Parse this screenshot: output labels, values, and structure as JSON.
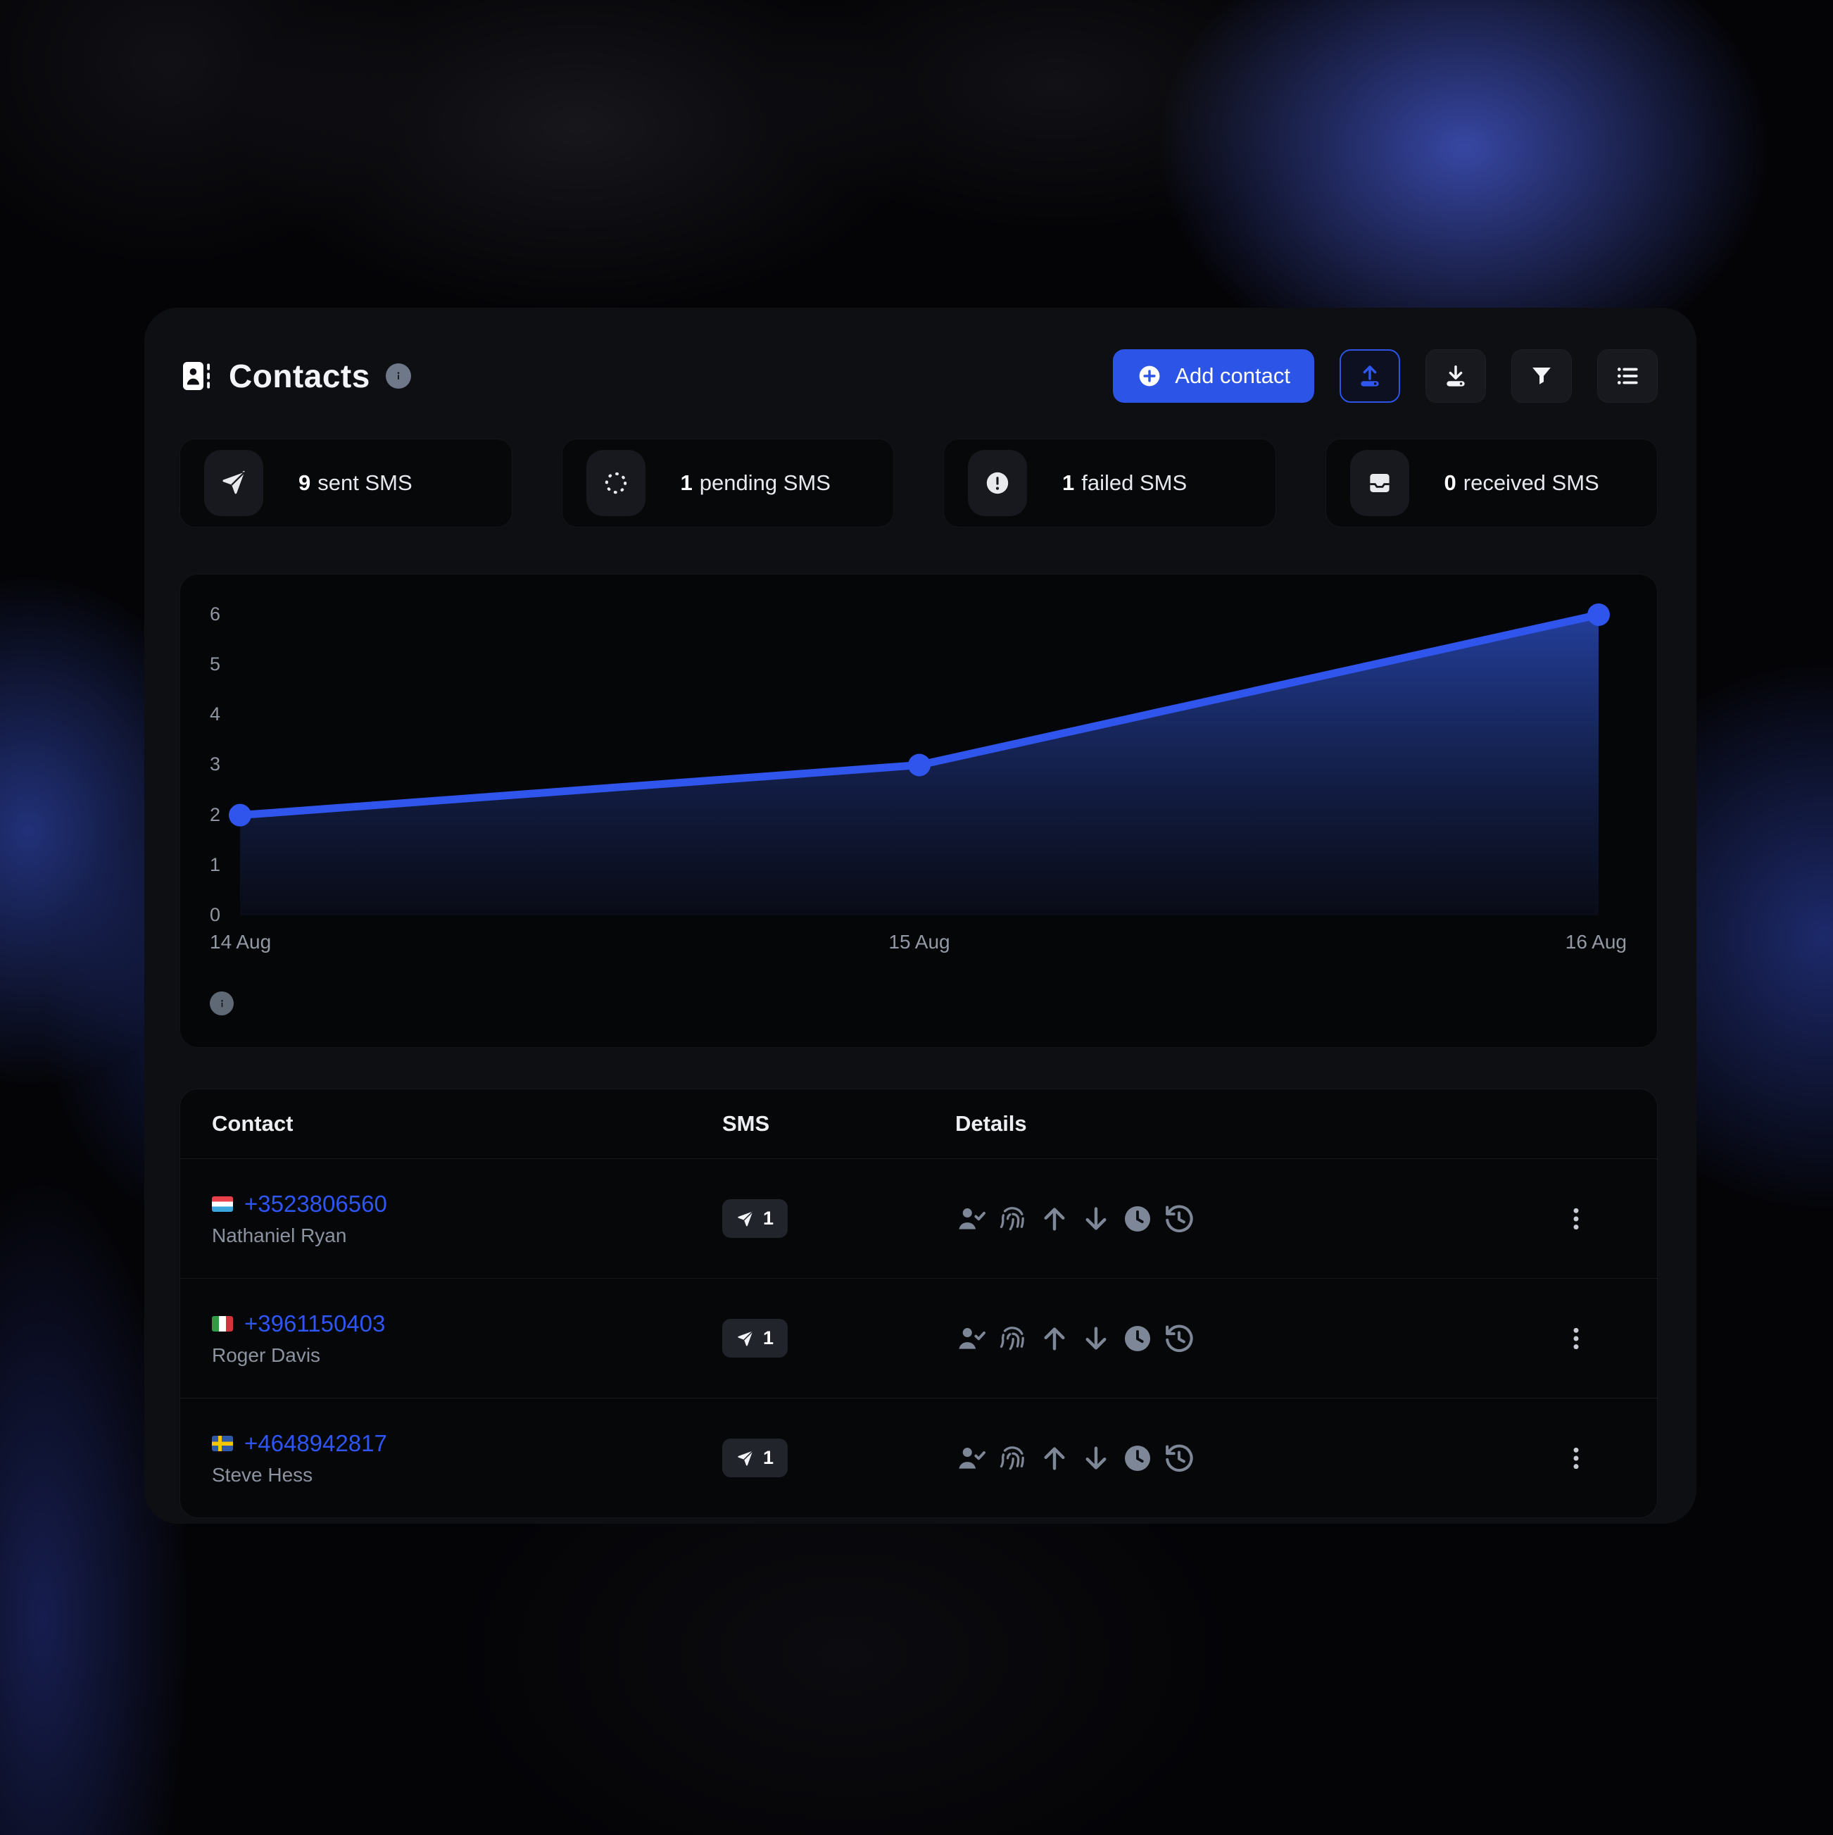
{
  "header": {
    "title": "Contacts",
    "add_contact_label": "Add contact"
  },
  "stats": [
    {
      "icon": "send-icon",
      "value": "9",
      "label": "sent SMS"
    },
    {
      "icon": "loader-icon",
      "value": "1",
      "label": "pending SMS"
    },
    {
      "icon": "alert-icon",
      "value": "1",
      "label": "failed SMS"
    },
    {
      "icon": "inbox-icon",
      "value": "0",
      "label": "received SMS"
    }
  ],
  "chart_data": {
    "type": "area",
    "title": "",
    "x": [
      "14 Aug",
      "15 Aug",
      "16 Aug"
    ],
    "series": [
      {
        "name": "sent SMS",
        "values": [
          2,
          3,
          6
        ]
      }
    ],
    "yticks": [
      6,
      5,
      4,
      3,
      2,
      1,
      0
    ],
    "ylim": [
      0,
      6
    ],
    "grid": false,
    "legend": "none",
    "line_color": "#2f55ec",
    "fill_top_color": "#2542a4",
    "fill_bottom_color": "#0c1024"
  },
  "table": {
    "columns": [
      "Contact",
      "SMS",
      "Details"
    ],
    "rows": [
      {
        "phone": "+3523806560",
        "name": "Nathaniel Ryan",
        "flag_class": "flag flag-lu",
        "flag_country": "Luxembourg",
        "sms": "1"
      },
      {
        "phone": "+3961150403",
        "name": "Roger Davis",
        "flag_class": "flag flag-it",
        "flag_country": "Italy",
        "sms": "1"
      },
      {
        "phone": "+4648942817",
        "name": "Steve Hess",
        "flag_class": "flag flag-se",
        "flag_country": "Sweden",
        "sms": "1"
      }
    ]
  },
  "colors": {
    "accent": "#2c54e6",
    "link": "#2e55f5",
    "panel": "#0e0f13"
  }
}
